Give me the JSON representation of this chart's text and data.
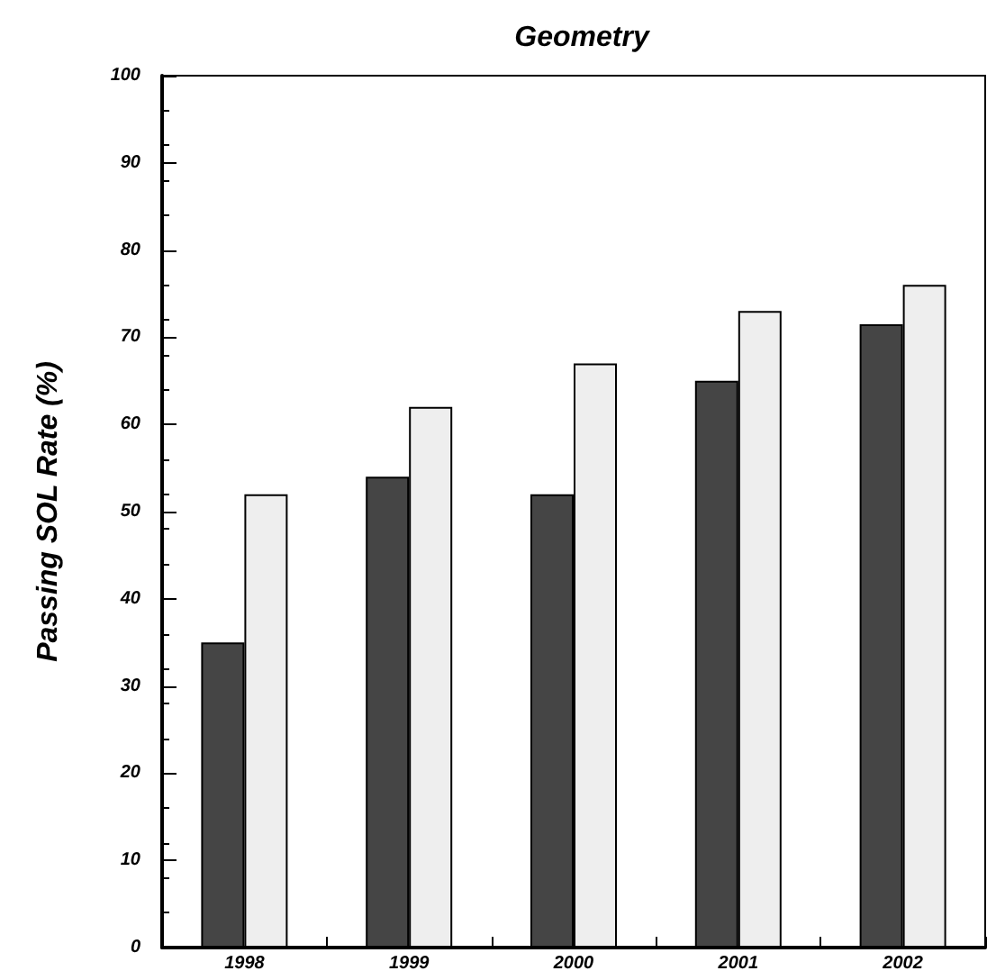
{
  "chart_data": {
    "type": "bar",
    "title": "Geometry",
    "ylabel": "Passing SOL Rate (%)",
    "categories": [
      "1998",
      "1999",
      "2000",
      "2001",
      "2002"
    ],
    "series": [
      {
        "color": "#454545",
        "values": [
          35,
          54,
          52,
          65,
          71.5
        ]
      },
      {
        "color": "#eeeeee",
        "values": [
          52,
          62,
          67,
          73,
          76
        ]
      }
    ],
    "ylim": [
      0,
      100
    ],
    "yticks": [
      0,
      10,
      20,
      30,
      40,
      50,
      60,
      70,
      80,
      90,
      100
    ],
    "grid": false
  }
}
